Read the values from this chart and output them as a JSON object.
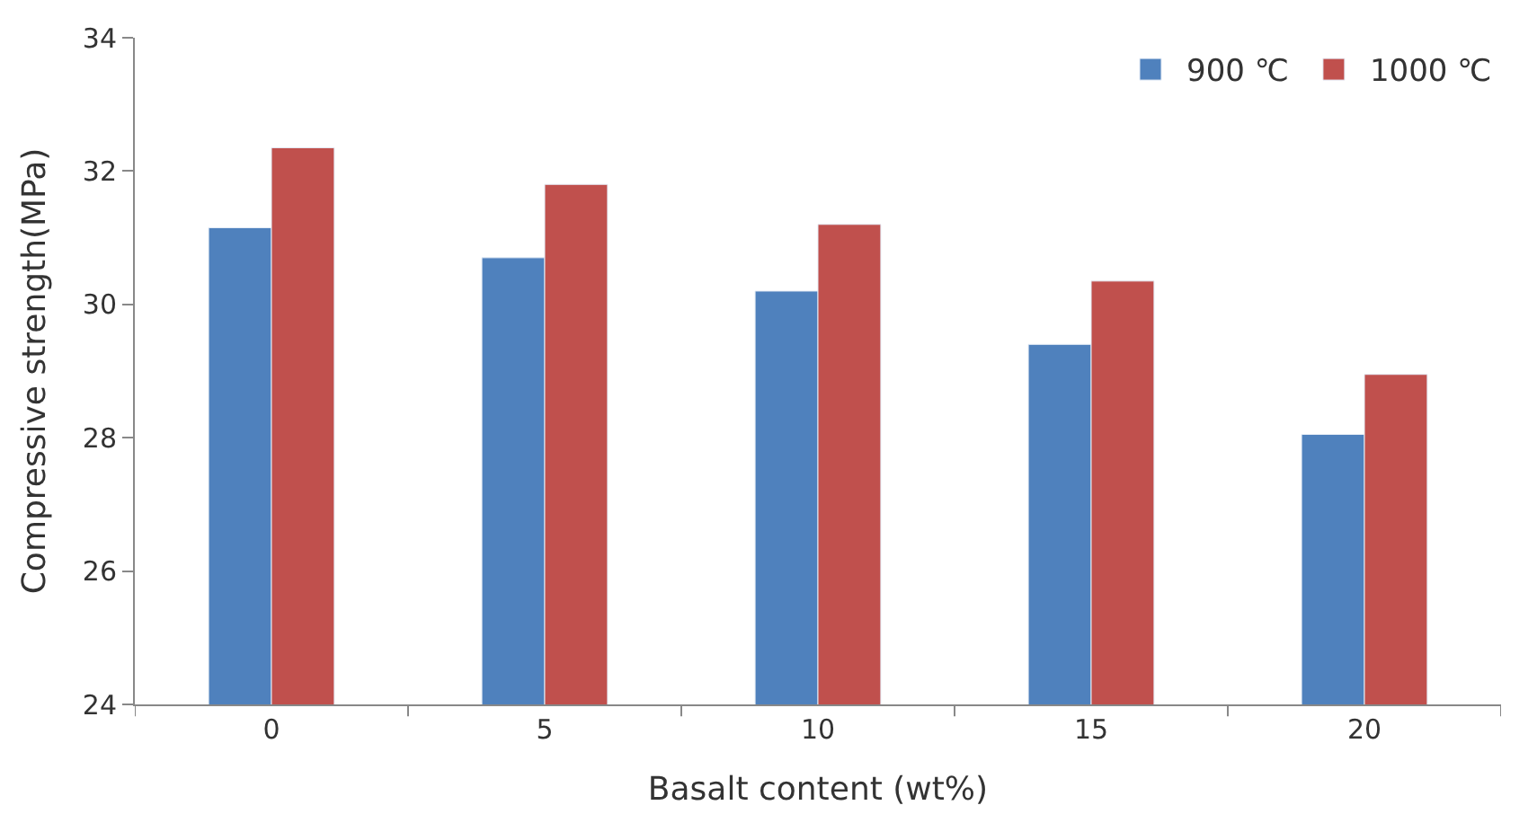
{
  "chart_data": {
    "type": "bar",
    "xlabel": "Basalt content (wt%)",
    "ylabel": "Compressive strength(MPa)",
    "categories": [
      "0",
      "5",
      "10",
      "15",
      "20"
    ],
    "series": [
      {
        "name": "900 ℃",
        "color": "#4f81bd",
        "values": [
          31.15,
          30.7,
          30.2,
          29.4,
          28.05
        ]
      },
      {
        "name": "1000 ℃",
        "color": "#c0504d",
        "values": [
          32.35,
          31.8,
          31.2,
          30.35,
          28.95
        ]
      }
    ],
    "ylim": [
      24,
      34
    ],
    "yticks": [
      24,
      26,
      28,
      30,
      32,
      34
    ],
    "legend": "top right"
  }
}
